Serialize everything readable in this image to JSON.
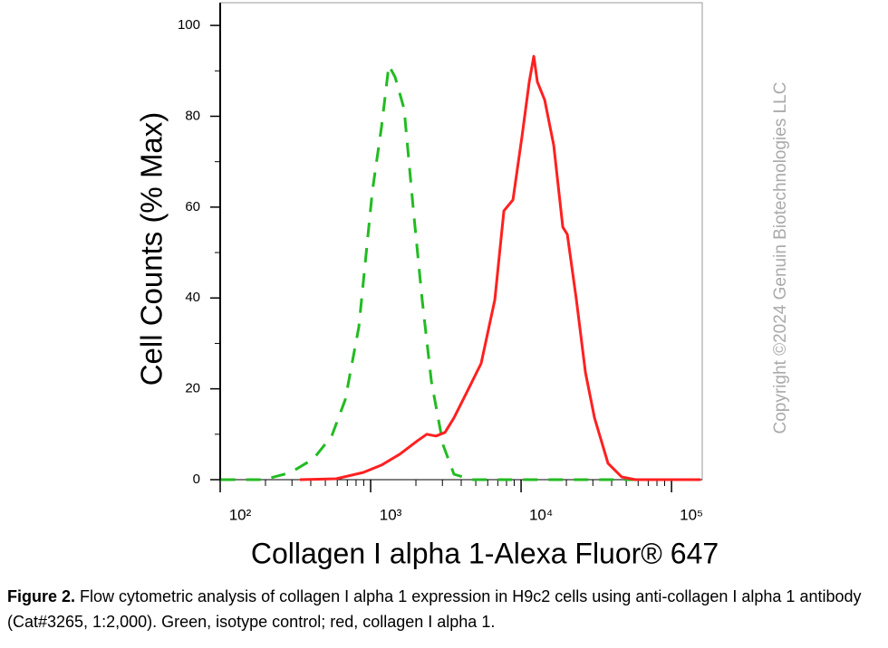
{
  "chart_data": {
    "type": "line",
    "ylabel": "Cell Counts (% Max)",
    "xlabel": "Collagen I alpha 1-Alexa Fluor® 647",
    "xscale": "log",
    "xlim": [
      100,
      160000
    ],
    "ylim": [
      0,
      105
    ],
    "xticks": [
      {
        "value": 100,
        "label": "10²"
      },
      {
        "value": 1000,
        "label": "10³"
      },
      {
        "value": 10000,
        "label": "10⁴"
      },
      {
        "value": 100000,
        "label": "10⁵"
      }
    ],
    "xminorticks": [
      200,
      300,
      400,
      500,
      600,
      700,
      800,
      900,
      2000,
      3000,
      4000,
      5000,
      6000,
      7000,
      8000,
      9000,
      20000,
      30000,
      40000,
      50000,
      60000,
      70000,
      80000,
      90000
    ],
    "yticks": [
      0,
      20,
      40,
      60,
      80,
      100
    ],
    "yminorticks": [
      10,
      30,
      50,
      70,
      90
    ],
    "grid": false,
    "series": [
      {
        "color": "#22bb22",
        "dash": true,
        "x": [
          101,
          195,
          295,
          417,
          551,
          678,
          835,
          1028,
          1181,
          1320,
          1455,
          1670,
          1920,
          2200,
          2535,
          3035,
          3580,
          4730,
          156000
        ],
        "values": [
          0,
          0,
          1.6,
          4.6,
          9.6,
          17.6,
          33.6,
          63.6,
          77.6,
          91.2,
          88.6,
          81.6,
          59.6,
          39.6,
          21.6,
          7.6,
          1.2,
          0,
          0
        ]
      },
      {
        "color": "#ff2020",
        "dash": false,
        "x": [
          339,
          590,
          895,
          1181,
          1560,
          2056,
          2363,
          2715,
          3120,
          3580,
          4414,
          5430,
          6690,
          7690,
          8830,
          10140,
          11330,
          12140,
          12830,
          14350,
          16480,
          18920,
          20280,
          23300,
          26770,
          30760,
          37840,
          46650,
          57410,
          156000
        ],
        "values": [
          0,
          0.2,
          1.6,
          3.2,
          5.6,
          8.6,
          10,
          9.6,
          10.4,
          13.6,
          19.6,
          25.6,
          39.6,
          59.2,
          61.6,
          75.6,
          87.6,
          93.2,
          87.6,
          83.6,
          73.6,
          55.6,
          54,
          39.6,
          23.6,
          13.6,
          3.6,
          0.6,
          0,
          0
        ]
      }
    ]
  },
  "watermark": "Copyright ©2024 Genuin Biotechnologies LLC",
  "figure_caption": {
    "label": "Figure 2.",
    "text": "Flow cytometric analysis of collagen I alpha 1 expression in H9c2 cells using anti-collagen I alpha 1 antibody (Cat#3265, 1:2,000). Green, isotype control; red, collagen I alpha 1."
  }
}
